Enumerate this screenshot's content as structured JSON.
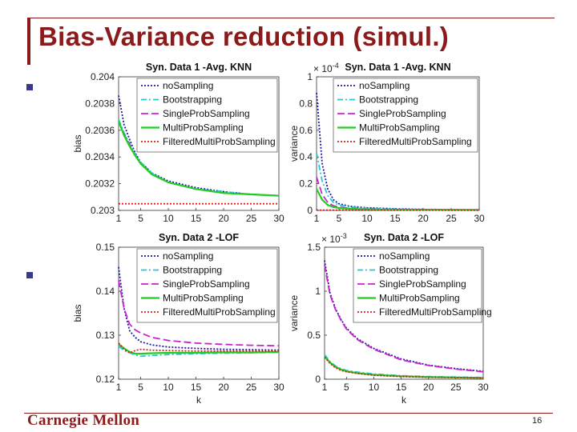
{
  "slide": {
    "title": "Bias-Variance reduction (simul.)",
    "page_number": "16",
    "logo": "Carnegie Mellon"
  },
  "series_meta": [
    {
      "name": "noSampling",
      "color": "#1a1aa0",
      "dash": "2,2"
    },
    {
      "name": "Bootstrapping",
      "color": "#22c8d8",
      "dash": "7,3,2,3"
    },
    {
      "name": "SingleProbSampling",
      "color": "#cc22cc",
      "dash": "9,4"
    },
    {
      "name": "MultiProbSampling",
      "color": "#22cc22",
      "dash": ""
    },
    {
      "name": "FilteredMultiProbSampling",
      "color": "#d42020",
      "dash": "2,2"
    }
  ],
  "chart_data": [
    {
      "type": "line",
      "title": "Syn. Data 1 -Avg. KNN",
      "xlabel": "",
      "ylabel": "bias",
      "xlim": [
        1,
        30
      ],
      "ylim": [
        0.203,
        0.204
      ],
      "xticks": [
        1,
        5,
        10,
        15,
        20,
        25,
        30
      ],
      "yticks": [
        0.203,
        0.2032,
        0.2034,
        0.2036,
        0.2038,
        0.204
      ],
      "ytick_labels": [
        "0.203",
        "0.2032",
        "0.2034",
        "0.2036",
        "0.2038",
        "0.204"
      ],
      "exponent": "",
      "x": [
        1,
        2,
        3,
        4,
        5,
        7,
        10,
        15,
        20,
        25,
        30
      ],
      "series": [
        {
          "name": "noSampling",
          "values": [
            0.20386,
            0.20364,
            0.20353,
            0.20343,
            0.20336,
            0.20328,
            0.20322,
            0.20317,
            0.20314,
            0.20312,
            0.20311
          ]
        },
        {
          "name": "Bootstrapping",
          "values": [
            0.20368,
            0.20358,
            0.2035,
            0.20342,
            0.20336,
            0.20328,
            0.20321,
            0.20316,
            0.20314,
            0.20312,
            0.20311
          ]
        },
        {
          "name": "SingleProbSampling",
          "values": [
            0.20366,
            0.20357,
            0.20349,
            0.20341,
            0.20335,
            0.20327,
            0.20321,
            0.20316,
            0.20313,
            0.20312,
            0.20311
          ]
        },
        {
          "name": "MultiProbSampling",
          "values": [
            0.20367,
            0.20356,
            0.20348,
            0.20341,
            0.20335,
            0.20327,
            0.20321,
            0.20316,
            0.20313,
            0.20312,
            0.20311
          ]
        },
        {
          "name": "FilteredMultiProbSampling",
          "values": [
            0.20305,
            0.20305,
            0.20305,
            0.20305,
            0.20305,
            0.20305,
            0.20305,
            0.20305,
            0.20305,
            0.20305,
            0.20305
          ]
        }
      ]
    },
    {
      "type": "line",
      "title": "Syn. Data 1 -Avg. KNN",
      "xlabel": "",
      "ylabel": "variance",
      "xlim": [
        1,
        30
      ],
      "ylim": [
        0,
        1
      ],
      "xticks": [
        1,
        5,
        10,
        15,
        20,
        25,
        30
      ],
      "yticks": [
        0,
        0.2,
        0.4,
        0.6,
        0.8,
        1
      ],
      "ytick_labels": [
        "0",
        "0.2",
        "0.4",
        "0.6",
        "0.8",
        "1"
      ],
      "exponent": "-4",
      "x": [
        1,
        2,
        3,
        4,
        5,
        7,
        10,
        15,
        20,
        25,
        30
      ],
      "series": [
        {
          "name": "noSampling",
          "values": [
            0.88,
            0.35,
            0.16,
            0.08,
            0.05,
            0.03,
            0.02,
            0.012,
            0.008,
            0.006,
            0.005
          ]
        },
        {
          "name": "Bootstrapping",
          "values": [
            0.43,
            0.22,
            0.11,
            0.06,
            0.04,
            0.025,
            0.015,
            0.009,
            0.006,
            0.005,
            0.004
          ]
        },
        {
          "name": "SingleProbSampling",
          "values": [
            0.25,
            0.12,
            0.06,
            0.035,
            0.025,
            0.015,
            0.01,
            0.006,
            0.005,
            0.004,
            0.003
          ]
        },
        {
          "name": "MultiProbSampling",
          "values": [
            0.16,
            0.08,
            0.04,
            0.025,
            0.018,
            0.012,
            0.008,
            0.005,
            0.004,
            0.003,
            0.003
          ]
        },
        {
          "name": "FilteredMultiProbSampling",
          "values": [
            0.002,
            0.002,
            0.002,
            0.002,
            0.002,
            0.002,
            0.002,
            0.002,
            0.002,
            0.002,
            0.002
          ]
        }
      ]
    },
    {
      "type": "line",
      "title": "Syn. Data 2 -LOF",
      "xlabel": "k",
      "ylabel": "bias",
      "xlim": [
        1,
        30
      ],
      "ylim": [
        0.12,
        0.15
      ],
      "xticks": [
        1,
        5,
        10,
        15,
        20,
        25,
        30
      ],
      "yticks": [
        0.12,
        0.13,
        0.14,
        0.15
      ],
      "ytick_labels": [
        "0.12",
        "0.13",
        "0.14",
        "0.15"
      ],
      "exponent": "",
      "x": [
        1,
        2,
        3,
        4,
        5,
        7,
        10,
        15,
        20,
        25,
        30
      ],
      "series": [
        {
          "name": "noSampling",
          "values": [
            0.1455,
            0.136,
            0.131,
            0.1295,
            0.1285,
            0.1278,
            0.1273,
            0.127,
            0.1268,
            0.1267,
            0.1266
          ]
        },
        {
          "name": "Bootstrapping",
          "values": [
            0.1275,
            0.1265,
            0.126,
            0.1255,
            0.1252,
            0.1254,
            0.1256,
            0.1258,
            0.1259,
            0.126,
            0.1261
          ]
        },
        {
          "name": "SingleProbSampling",
          "values": [
            0.1425,
            0.136,
            0.1325,
            0.1312,
            0.1305,
            0.1295,
            0.1288,
            0.1282,
            0.1279,
            0.1277,
            0.1276
          ]
        },
        {
          "name": "MultiProbSampling",
          "values": [
            0.128,
            0.127,
            0.1262,
            0.1258,
            0.1258,
            0.1259,
            0.126,
            0.126,
            0.1261,
            0.1261,
            0.1262
          ]
        },
        {
          "name": "FilteredMultiProbSampling",
          "values": [
            0.1282,
            0.1268,
            0.126,
            0.1265,
            0.1268,
            0.1266,
            0.1265,
            0.1264,
            0.1264,
            0.1264,
            0.1264
          ]
        }
      ]
    },
    {
      "type": "line",
      "title": "Syn. Data 2 -LOF",
      "xlabel": "k",
      "ylabel": "variance",
      "xlim": [
        1,
        30
      ],
      "ylim": [
        0,
        1.5
      ],
      "xticks": [
        1,
        5,
        10,
        15,
        20,
        25,
        30
      ],
      "yticks": [
        0,
        0.5,
        1,
        1.5
      ],
      "ytick_labels": [
        "0",
        "0.5",
        "1",
        "1.5"
      ],
      "exponent": "-3",
      "x": [
        1,
        2,
        3,
        4,
        5,
        7,
        10,
        15,
        20,
        25,
        30
      ],
      "series": [
        {
          "name": "noSampling",
          "values": [
            1.35,
            0.98,
            0.8,
            0.68,
            0.58,
            0.46,
            0.35,
            0.23,
            0.16,
            0.12,
            0.09
          ]
        },
        {
          "name": "Bootstrapping",
          "values": [
            0.28,
            0.2,
            0.15,
            0.12,
            0.1,
            0.08,
            0.06,
            0.04,
            0.03,
            0.025,
            0.02
          ]
        },
        {
          "name": "SingleProbSampling",
          "values": [
            1.3,
            0.96,
            0.79,
            0.67,
            0.57,
            0.45,
            0.34,
            0.22,
            0.155,
            0.115,
            0.085
          ]
        },
        {
          "name": "MultiProbSampling",
          "values": [
            0.26,
            0.19,
            0.14,
            0.11,
            0.09,
            0.07,
            0.05,
            0.035,
            0.025,
            0.02,
            0.015
          ]
        },
        {
          "name": "FilteredMultiProbSampling",
          "values": [
            0.25,
            0.18,
            0.13,
            0.1,
            0.085,
            0.065,
            0.045,
            0.03,
            0.022,
            0.018,
            0.014
          ]
        }
      ]
    }
  ]
}
